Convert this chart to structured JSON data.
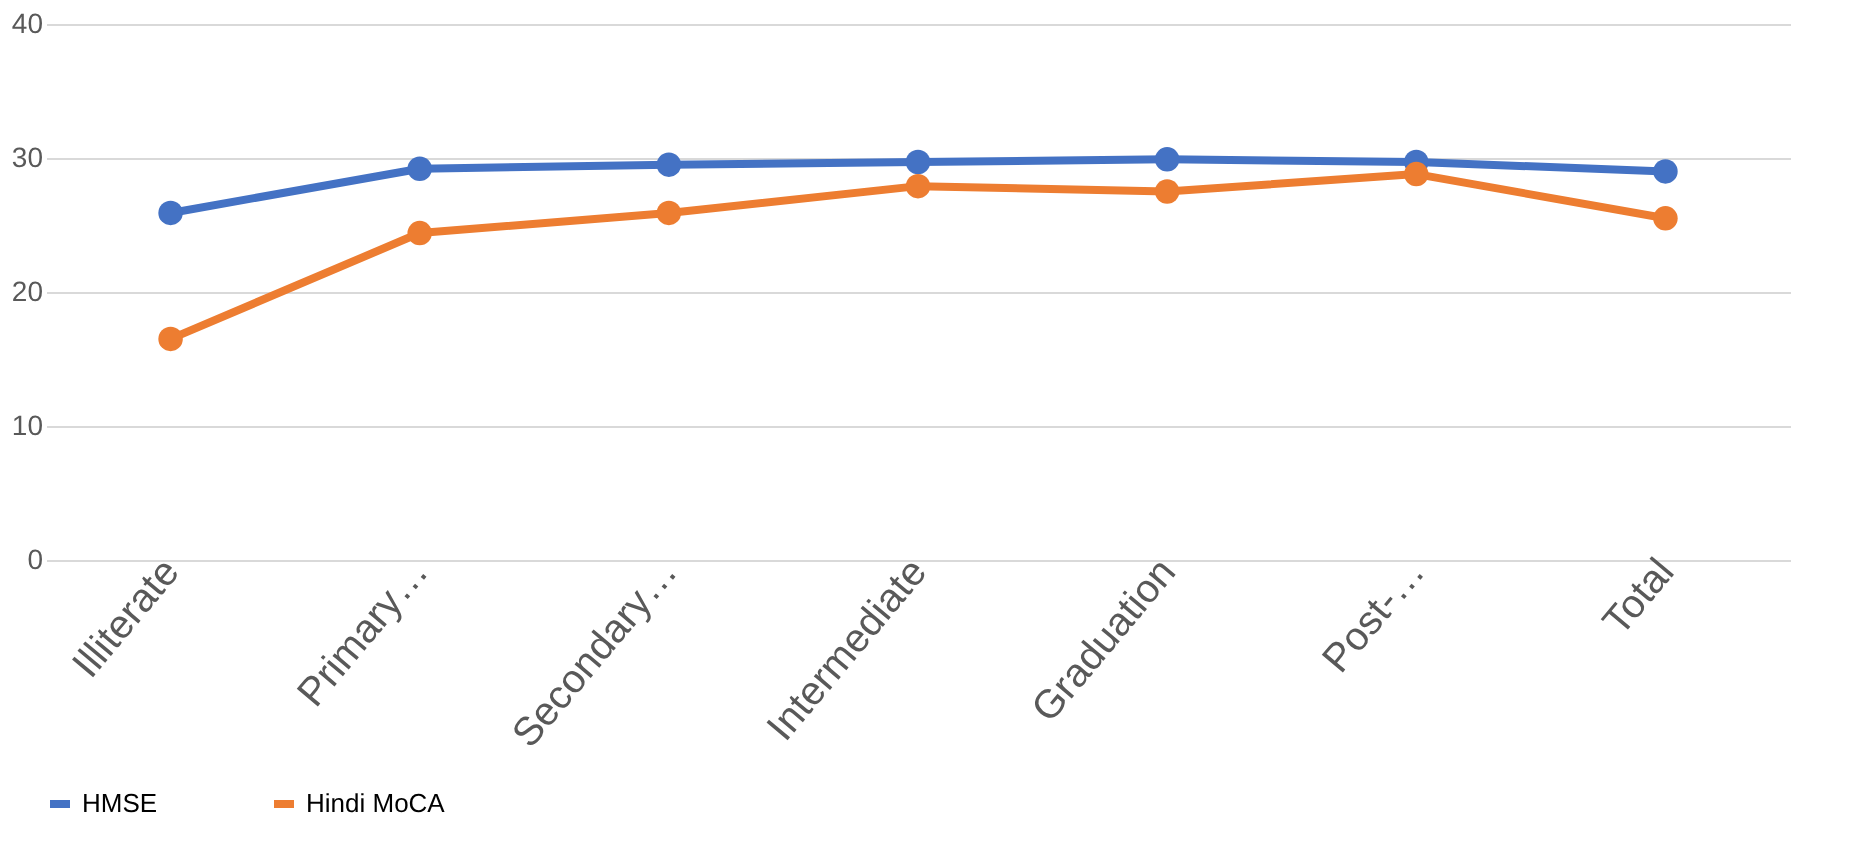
{
  "chart_data": {
    "type": "line",
    "categories": [
      "Illiterate",
      "Primary…",
      "Secondary…",
      "Intermediate",
      "Graduation",
      "Post-…",
      "Total"
    ],
    "series": [
      {
        "name": "HMSE",
        "color": "#4472c4",
        "values": [
          25.9,
          29.2,
          29.5,
          29.7,
          29.9,
          29.7,
          29.0
        ]
      },
      {
        "name": "Hindi MoCA",
        "color": "#ed7d31",
        "values": [
          16.5,
          24.4,
          25.9,
          27.9,
          27.5,
          28.8,
          25.5
        ]
      }
    ],
    "ylim": [
      0,
      40
    ],
    "yticks": [
      0,
      10,
      20,
      30,
      40
    ],
    "grid": "y",
    "legend": "bottom",
    "marker": "circle",
    "line_style": "solid"
  }
}
